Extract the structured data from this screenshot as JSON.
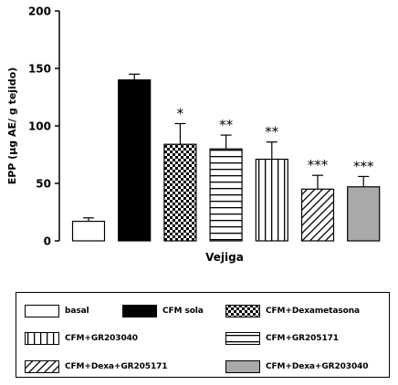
{
  "chart_data": {
    "type": "bar",
    "title": "",
    "xlabel": "Vejiga",
    "ylabel": "EPP (µg AE/ g tejido)",
    "ylim": [
      0,
      200
    ],
    "yticks": [
      "0",
      "50",
      "100",
      "150",
      "200"
    ],
    "grid": false,
    "categories": [
      "basal",
      "CFM sola",
      "CFM+Dexametasona",
      "CFM+GR205171",
      "CFM+GR203040",
      "CFM+Dexa+GR205171",
      "CFM+Dexa+GR203040"
    ],
    "values": [
      17,
      140,
      84,
      80,
      71,
      45,
      47
    ],
    "errors": [
      3,
      5,
      18,
      12,
      15,
      12,
      9
    ],
    "significance": [
      "",
      "",
      "*",
      "**",
      "**",
      "***",
      "***"
    ],
    "legend_position": "bottom"
  },
  "legend": {
    "items": [
      {
        "label": "basal",
        "pattern": "empty"
      },
      {
        "label": "CFM sola",
        "pattern": "solid-black"
      },
      {
        "label": "CFM+Dexametasona",
        "pattern": "checker"
      },
      {
        "label": "CFM+GR203040",
        "pattern": "vertical-lines"
      },
      {
        "label": "CFM+GR205171",
        "pattern": "horizontal-lines"
      },
      {
        "label": "CFM+Dexa+GR205171",
        "pattern": "diagonal-lines"
      },
      {
        "label": "CFM+Dexa+GR203040",
        "pattern": "solid-gray"
      }
    ]
  },
  "colors": {
    "black": "#000000",
    "gray": "#a9a9a9",
    "white": "#ffffff"
  }
}
